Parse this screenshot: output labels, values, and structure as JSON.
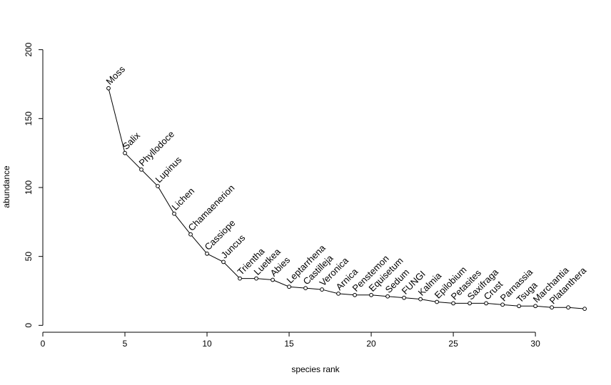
{
  "chart_data": {
    "type": "line",
    "title": "",
    "xlabel": "species rank",
    "ylabel": "abundance",
    "xlim": [
      0,
      33.3
    ],
    "ylim": [
      -5,
      205
    ],
    "xticks": [
      0,
      5,
      10,
      15,
      20,
      25,
      30
    ],
    "yticks": [
      0,
      50,
      100,
      150,
      200
    ],
    "grid": false,
    "series": [
      {
        "points": [
          {
            "x": 4,
            "y": 172,
            "label": "Moss"
          },
          {
            "x": 5,
            "y": 125,
            "label": "Salix"
          },
          {
            "x": 6,
            "y": 113,
            "label": "Phyllodoce"
          },
          {
            "x": 7,
            "y": 101,
            "label": "Lupinus"
          },
          {
            "x": 8,
            "y": 81,
            "label": "Lichen"
          },
          {
            "x": 9,
            "y": 66,
            "label": "Chamaenerion"
          },
          {
            "x": 10,
            "y": 52,
            "label": "Cassiope"
          },
          {
            "x": 11,
            "y": 46,
            "label": "Juncus"
          },
          {
            "x": 12,
            "y": 34,
            "label": "Trientha"
          },
          {
            "x": 13,
            "y": 34,
            "label": "Luetkea"
          },
          {
            "x": 14,
            "y": 33,
            "label": "Abies"
          },
          {
            "x": 15,
            "y": 28,
            "label": "Leptarrhena"
          },
          {
            "x": 16,
            "y": 27,
            "label": "Castilleja"
          },
          {
            "x": 17,
            "y": 26,
            "label": "Veronica"
          },
          {
            "x": 18,
            "y": 23,
            "label": "Arnica"
          },
          {
            "x": 19,
            "y": 22,
            "label": "Penstemon"
          },
          {
            "x": 20,
            "y": 22,
            "label": "Equisetum"
          },
          {
            "x": 21,
            "y": 21,
            "label": "Sedum"
          },
          {
            "x": 22,
            "y": 20,
            "label": "FUNGI"
          },
          {
            "x": 23,
            "y": 19,
            "label": "Kalmia"
          },
          {
            "x": 24,
            "y": 17,
            "label": "Epilobium"
          },
          {
            "x": 25,
            "y": 16,
            "label": "Petasites"
          },
          {
            "x": 26,
            "y": 16,
            "label": "Saxifraga"
          },
          {
            "x": 27,
            "y": 16,
            "label": "Crust"
          },
          {
            "x": 28,
            "y": 15,
            "label": "Parnassia"
          },
          {
            "x": 29,
            "y": 14,
            "label": "Tsuga"
          },
          {
            "x": 30,
            "y": 14,
            "label": "Marchantia"
          },
          {
            "x": 31,
            "y": 13,
            "label": "Platanthera"
          },
          {
            "x": 32,
            "y": 13,
            "label": ""
          },
          {
            "x": 33,
            "y": 12,
            "label": ""
          }
        ]
      }
    ]
  }
}
